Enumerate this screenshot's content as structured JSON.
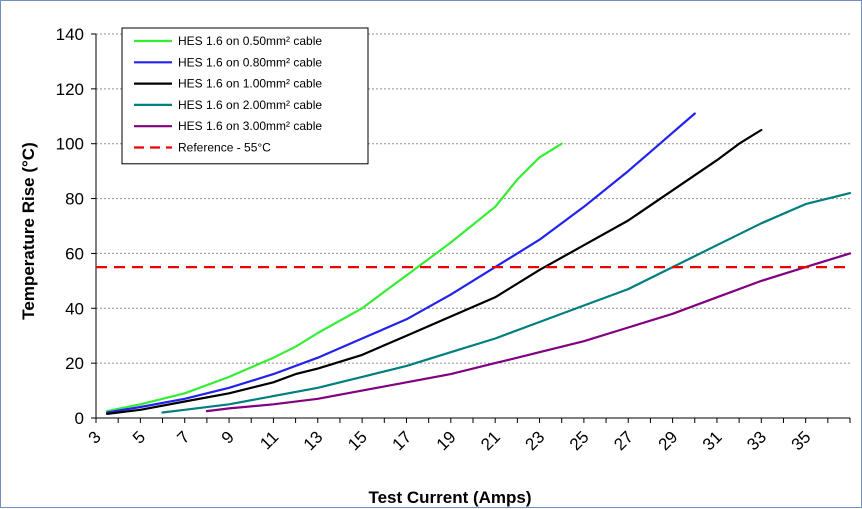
{
  "chart_data": {
    "type": "line",
    "xlabel": "Test Current (Amps)",
    "ylabel": "Temperature Rise (°C)",
    "xlim": [
      3,
      37
    ],
    "ylim": [
      0,
      140
    ],
    "x_ticks": [
      "3",
      "5",
      "7",
      "9",
      "11",
      "13",
      "15",
      "17",
      "19",
      "21",
      "23",
      "25",
      "27",
      "29",
      "31",
      "33",
      "35"
    ],
    "y_ticks": [
      "0",
      "20",
      "40",
      "60",
      "80",
      "100",
      "120",
      "140"
    ],
    "grid": "horizontal dotted",
    "legend_position": "top-left",
    "series": [
      {
        "name": "HES 1.6 on 0.50mm² cable",
        "color": "#33ee33",
        "points": [
          [
            3.5,
            2.5
          ],
          [
            5,
            5
          ],
          [
            7,
            9
          ],
          [
            9,
            15
          ],
          [
            11,
            22
          ],
          [
            12,
            26
          ],
          [
            13,
            31
          ],
          [
            15,
            40
          ],
          [
            16,
            46
          ],
          [
            17,
            52
          ],
          [
            19,
            64
          ],
          [
            21,
            77
          ],
          [
            22,
            87
          ],
          [
            23,
            95
          ],
          [
            24,
            100
          ]
        ]
      },
      {
        "name": "HES 1.6 on 0.80mm² cable",
        "color": "#2222ee",
        "points": [
          [
            3.5,
            2
          ],
          [
            5,
            4
          ],
          [
            7,
            7
          ],
          [
            9,
            11
          ],
          [
            11,
            16
          ],
          [
            13,
            22
          ],
          [
            15,
            29
          ],
          [
            17,
            36
          ],
          [
            19,
            45
          ],
          [
            21,
            55
          ],
          [
            23,
            65
          ],
          [
            25,
            77
          ],
          [
            27,
            90
          ],
          [
            28,
            97
          ],
          [
            29,
            104
          ],
          [
            30,
            111
          ]
        ]
      },
      {
        "name": "HES 1.6 on 1.00mm² cable",
        "color": "#000000",
        "points": [
          [
            3.5,
            1.5
          ],
          [
            5,
            3
          ],
          [
            7,
            6
          ],
          [
            9,
            9
          ],
          [
            11,
            13
          ],
          [
            12,
            16
          ],
          [
            13,
            18
          ],
          [
            15,
            23
          ],
          [
            17,
            30
          ],
          [
            19,
            37
          ],
          [
            21,
            44
          ],
          [
            23,
            54
          ],
          [
            25,
            63
          ],
          [
            27,
            72
          ],
          [
            29,
            83
          ],
          [
            31,
            94
          ],
          [
            32,
            100
          ],
          [
            33,
            105
          ]
        ]
      },
      {
        "name": "HES 1.6 on 2.00mm² cable",
        "color": "#007f7f",
        "points": [
          [
            6,
            2
          ],
          [
            7,
            3
          ],
          [
            9,
            5
          ],
          [
            11,
            8
          ],
          [
            13,
            11
          ],
          [
            15,
            15
          ],
          [
            17,
            19
          ],
          [
            19,
            24
          ],
          [
            21,
            29
          ],
          [
            23,
            35
          ],
          [
            25,
            41
          ],
          [
            27,
            47
          ],
          [
            29,
            55
          ],
          [
            31,
            63
          ],
          [
            33,
            71
          ],
          [
            35,
            78
          ],
          [
            37,
            82
          ]
        ]
      },
      {
        "name": "HES 1.6 on 3.00mm² cable",
        "color": "#800080",
        "points": [
          [
            8,
            2.5
          ],
          [
            9,
            3.5
          ],
          [
            11,
            5
          ],
          [
            13,
            7
          ],
          [
            15,
            10
          ],
          [
            17,
            13
          ],
          [
            19,
            16
          ],
          [
            21,
            20
          ],
          [
            23,
            24
          ],
          [
            25,
            28
          ],
          [
            27,
            33
          ],
          [
            29,
            38
          ],
          [
            31,
            44
          ],
          [
            33,
            50
          ],
          [
            35,
            55
          ],
          [
            37,
            60
          ]
        ]
      },
      {
        "name": "Reference - 55°C",
        "color": "#ee0000",
        "dashed": true,
        "points": [
          [
            3,
            55
          ],
          [
            37,
            55
          ]
        ]
      }
    ]
  }
}
